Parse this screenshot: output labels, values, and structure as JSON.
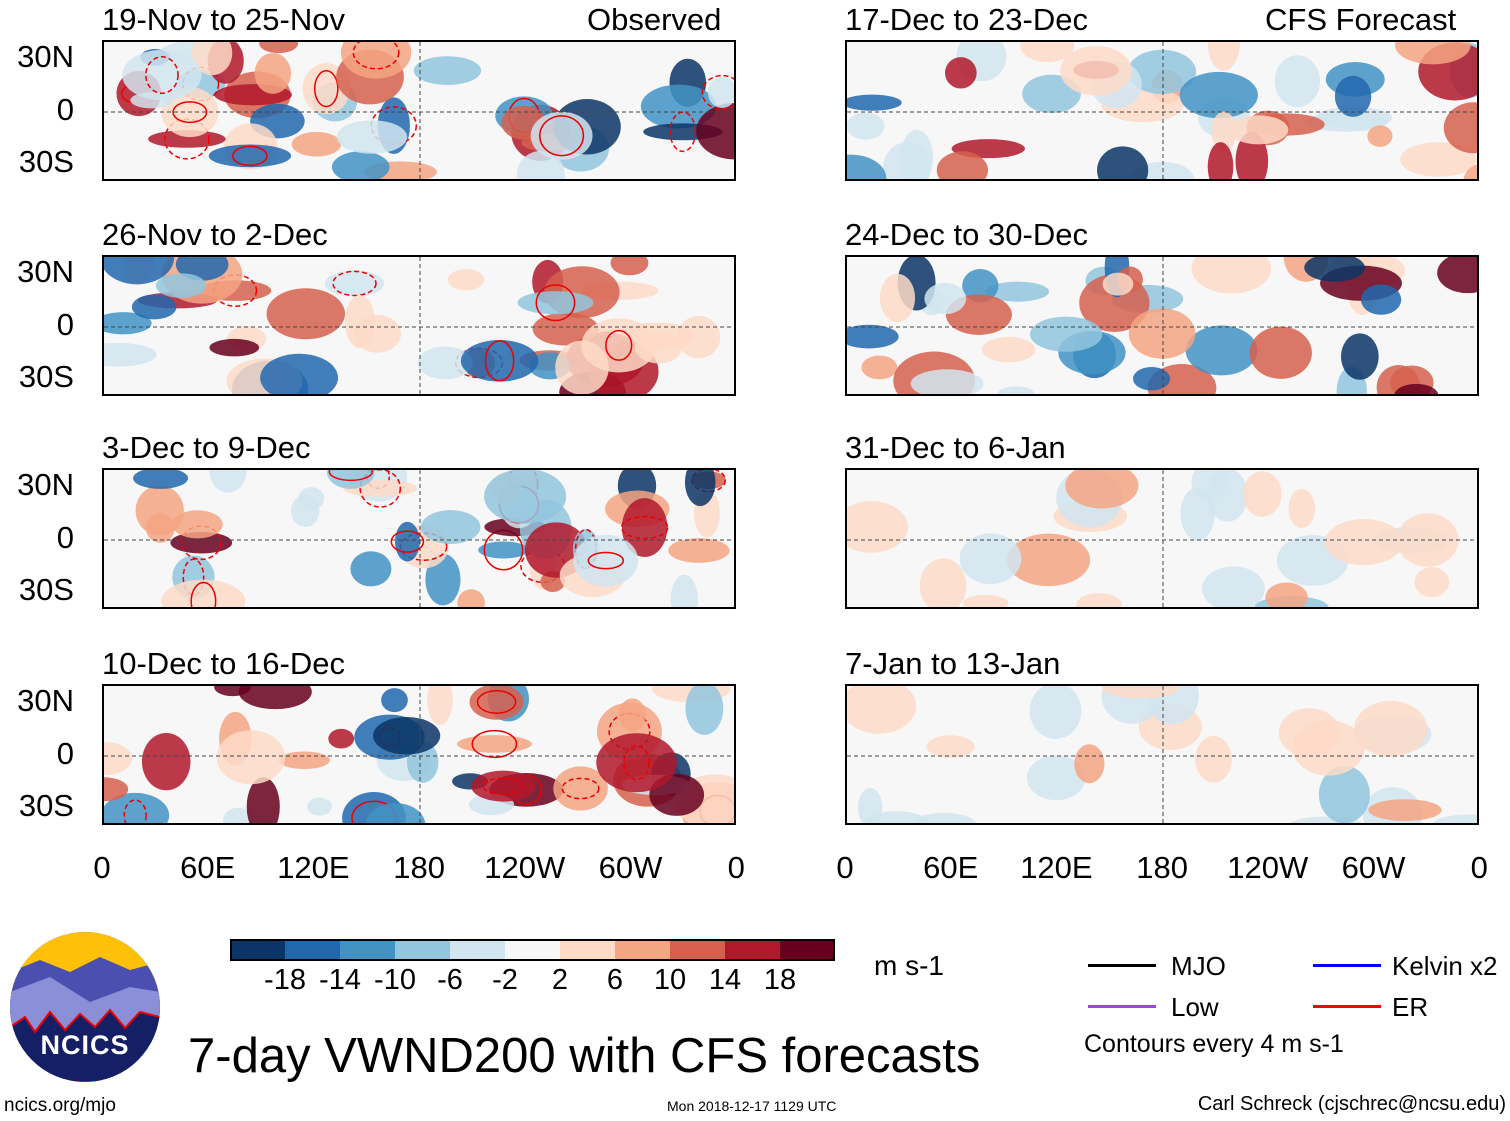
{
  "header": {
    "observed_label": "Observed",
    "forecast_label": "CFS Forecast"
  },
  "panels_observed": [
    {
      "title": "19-Nov to 25-Nov"
    },
    {
      "title": "26-Nov to 2-Dec"
    },
    {
      "title": "3-Dec to 9-Dec"
    },
    {
      "title": "10-Dec to 16-Dec"
    }
  ],
  "panels_forecast": [
    {
      "title": "17-Dec to 23-Dec"
    },
    {
      "title": "24-Dec to 30-Dec"
    },
    {
      "title": "31-Dec to 6-Jan"
    },
    {
      "title": "7-Jan to 13-Jan"
    }
  ],
  "y_axis": [
    "30N",
    "0",
    "30S"
  ],
  "x_axis": [
    "0",
    "60E",
    "120E",
    "180",
    "120W",
    "60W",
    "0"
  ],
  "colorbar": {
    "colors": [
      "#0b3566",
      "#2167ad",
      "#4293c4",
      "#92c5de",
      "#d1e5f0",
      "#f7f7f7",
      "#fddbc7",
      "#f4a582",
      "#d6604d",
      "#b2182b",
      "#67001f"
    ],
    "labels": [
      "-18",
      "-14",
      "-10",
      "-6",
      "-2",
      "2",
      "6",
      "10",
      "14",
      "18"
    ],
    "units": "m s-1"
  },
  "legend": {
    "items": [
      {
        "label": "MJO",
        "color": "#000000"
      },
      {
        "label": "Kelvin x2",
        "color": "#0000ff"
      },
      {
        "label": "Low",
        "color": "#a040ff"
      },
      {
        "label": "ER",
        "color": "#ff0000"
      }
    ],
    "note": "Contours every 4 m s-1"
  },
  "logo": {
    "text": "NCICS"
  },
  "title": "7-day VWND200 with CFS forecasts",
  "footer": {
    "url": "ncics.org/mjo",
    "timestamp": "Mon 2018-12-17 1129 UTC",
    "author": "Carl Schreck (cjschrec@ncsu.edu)"
  }
}
